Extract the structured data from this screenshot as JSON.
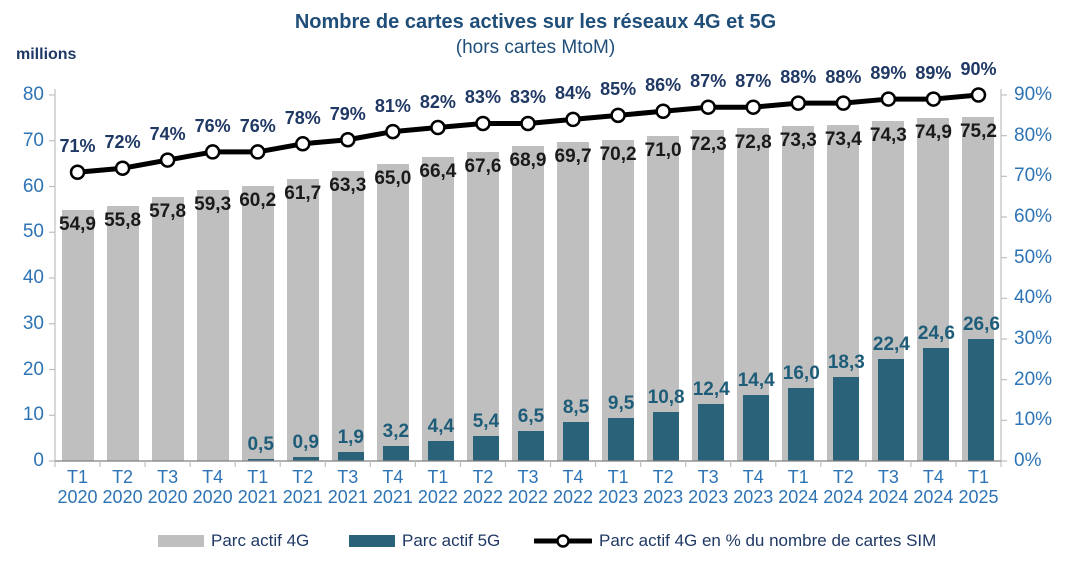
{
  "header": {
    "title": "Nombre de cartes actives sur les réseaux 4G et 5G",
    "subtitle": "(hors cartes MtoM)",
    "unit_label": "millions"
  },
  "legend": {
    "items": [
      {
        "label": "Parc actif 4G"
      },
      {
        "label": "Parc actif 5G"
      },
      {
        "label": "Parc actif 4G en % du nombre de cartes SIM"
      }
    ]
  },
  "colors": {
    "bar_4g": "#BFBFBF",
    "bar_5g": "#2A6379",
    "line_pct": "#000000",
    "marker_fill": "#FFFFFF",
    "title_text": "#1F4E79",
    "navy_text": "#1F3864",
    "axis_tick_text": "#2E74B5",
    "label_4g_text": "#1A1A1A",
    "label_5g_text": "#1E5D79",
    "axis_line": "#BFBFBF",
    "baseline": "#808080"
  },
  "chart_data": {
    "type": "bar",
    "title": "Nombre de cartes actives sur les réseaux 4G et 5G",
    "subtitle": "(hors cartes MtoM)",
    "categories": [
      "T1 2020",
      "T2 2020",
      "T3 2020",
      "T4 2020",
      "T1 2021",
      "T2 2021",
      "T3 2021",
      "T4 2021",
      "T1 2022",
      "T2 2022",
      "T3 2022",
      "T4 2022",
      "T1 2023",
      "T2 2023",
      "T3 2023",
      "T4 2023",
      "T1 2024",
      "T2 2024",
      "T3 2024",
      "T4 2024",
      "T1 2025"
    ],
    "series": [
      {
        "name": "Parc actif 4G",
        "type": "bar",
        "axis": "left",
        "values": [
          54.9,
          55.8,
          57.8,
          59.3,
          60.2,
          61.7,
          63.3,
          65.0,
          66.4,
          67.6,
          68.9,
          69.7,
          70.2,
          71.0,
          72.3,
          72.8,
          73.3,
          73.4,
          74.3,
          74.9,
          75.2
        ]
      },
      {
        "name": "Parc actif 5G",
        "type": "bar",
        "axis": "left",
        "values": [
          null,
          null,
          null,
          null,
          0.5,
          0.9,
          1.9,
          3.2,
          4.4,
          5.4,
          6.5,
          8.5,
          9.5,
          10.8,
          12.4,
          14.4,
          16.0,
          18.3,
          22.4,
          24.6,
          26.6
        ]
      },
      {
        "name": "Parc actif 4G en % du nombre de cartes SIM",
        "type": "line",
        "axis": "right",
        "values": [
          71,
          72,
          74,
          76,
          76,
          78,
          79,
          81,
          82,
          83,
          83,
          84,
          85,
          86,
          87,
          87,
          88,
          88,
          89,
          89,
          90
        ]
      }
    ],
    "y_left": {
      "label": "millions",
      "min": 0,
      "max": 80,
      "step": 10
    },
    "y_right": {
      "min": 0,
      "max": 90,
      "step": 10,
      "unit": "%"
    },
    "grid": false,
    "legend_position": "bottom",
    "value_label_decimal_separator": ","
  }
}
